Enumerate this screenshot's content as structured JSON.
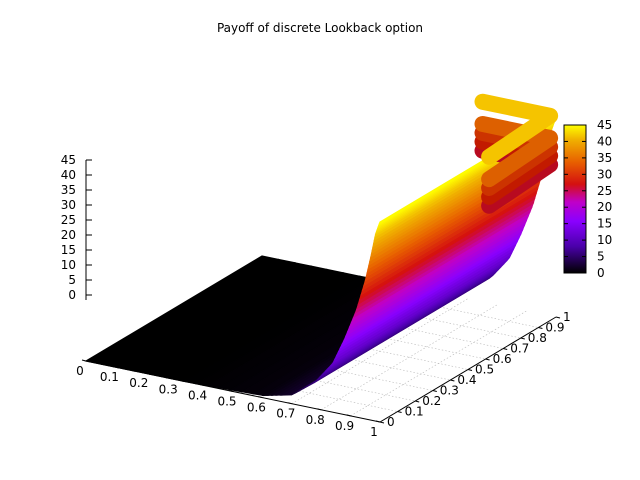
{
  "chart_data": {
    "type": "surface",
    "title": "Payoff of discrete Lookback option",
    "xlabel": "",
    "ylabel": "",
    "zlabel": "",
    "xlim": [
      0,
      1
    ],
    "ylim": [
      0,
      1
    ],
    "zlim": [
      0,
      45
    ],
    "x_ticks": [
      "0",
      "0.1",
      "0.2",
      "0.3",
      "0.4",
      "0.5",
      "0.6",
      "0.7",
      "0.8",
      "0.9",
      "1"
    ],
    "y_ticks": [
      "0",
      "0.1",
      "0.2",
      "0.3",
      "0.4",
      "0.5",
      "0.6",
      "0.7",
      "0.8",
      "0.9",
      "1"
    ],
    "z_ticks": [
      "0",
      "5",
      "10",
      "15",
      "20",
      "25",
      "30",
      "35",
      "40",
      "45"
    ],
    "colorbar": {
      "range": [
        0,
        45
      ],
      "ticks": [
        "0",
        "5",
        "10",
        "15",
        "20",
        "25",
        "30",
        "35",
        "40",
        "45"
      ],
      "palette": [
        "#000000",
        "#7a00ff",
        "#c400d0",
        "#d22000",
        "#f0a000",
        "#ffff00"
      ]
    },
    "grid": true,
    "surface_profile": {
      "x_of_y": [
        0,
        0.35,
        0.6,
        0.7,
        0.78,
        0.84,
        0.88,
        0.92,
        0.95,
        0.97,
        0.985,
        1
      ],
      "z_of_x": [
        0,
        0,
        0.5,
        2,
        6,
        11,
        17,
        24,
        31,
        37,
        42,
        45
      ]
    },
    "ridge_lines": [
      {
        "z": 45,
        "color": "#f5c400"
      },
      {
        "z": 40,
        "color": "#dd6000"
      },
      {
        "z": 38,
        "color": "#cc3300"
      },
      {
        "z": 36,
        "color": "#c21a00"
      },
      {
        "z": 34,
        "color": "#b80a20"
      }
    ]
  }
}
